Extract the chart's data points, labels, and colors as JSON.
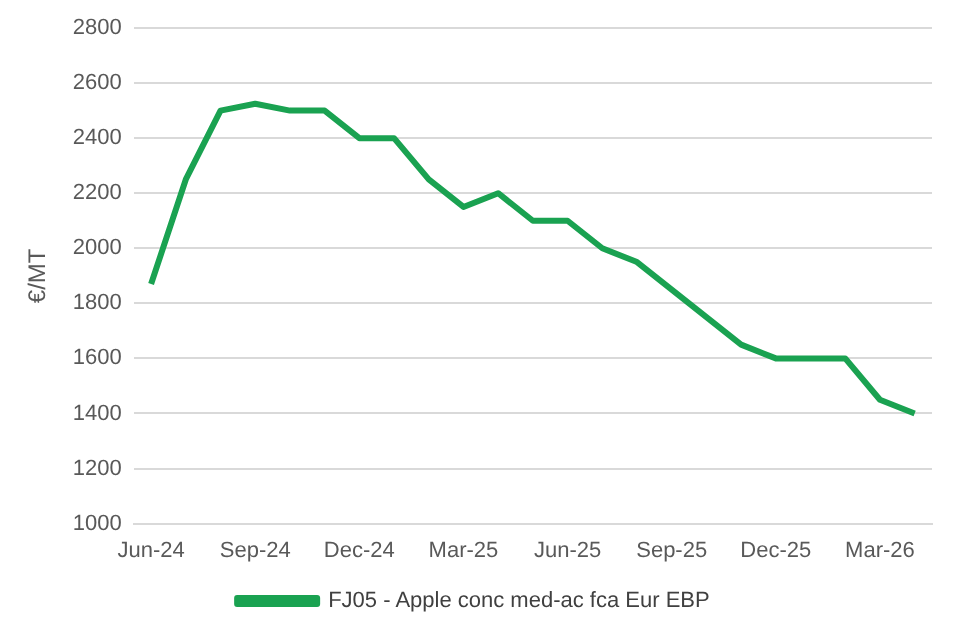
{
  "chart_data": {
    "type": "line",
    "ylabel": "€/MT",
    "categories": [
      "Jun-24",
      null,
      null,
      "Sep-24",
      null,
      null,
      "Dec-24",
      null,
      null,
      "Mar-25",
      null,
      null,
      "Jun-25",
      null,
      null,
      "Sep-25",
      null,
      null,
      "Dec-25",
      null,
      null,
      "Mar-26",
      null
    ],
    "series": [
      {
        "name": "FJ05 - Apple conc med-ac fca Eur EBP",
        "color": "#1aa251",
        "values": [
          1870,
          2250,
          2500,
          2525,
          2500,
          2500,
          2400,
          2400,
          2250,
          2150,
          2200,
          2100,
          2100,
          2000,
          1950,
          1850,
          1750,
          1650,
          1600,
          1600,
          1600,
          1450,
          1400
        ]
      }
    ],
    "ylim": [
      1000,
      2800
    ],
    "yticks": [
      1000,
      1200,
      1400,
      1600,
      1800,
      2000,
      2200,
      2400,
      2600,
      2800
    ],
    "grid": "y",
    "legend": "bottom",
    "marker": "none",
    "line_style": "solid"
  }
}
